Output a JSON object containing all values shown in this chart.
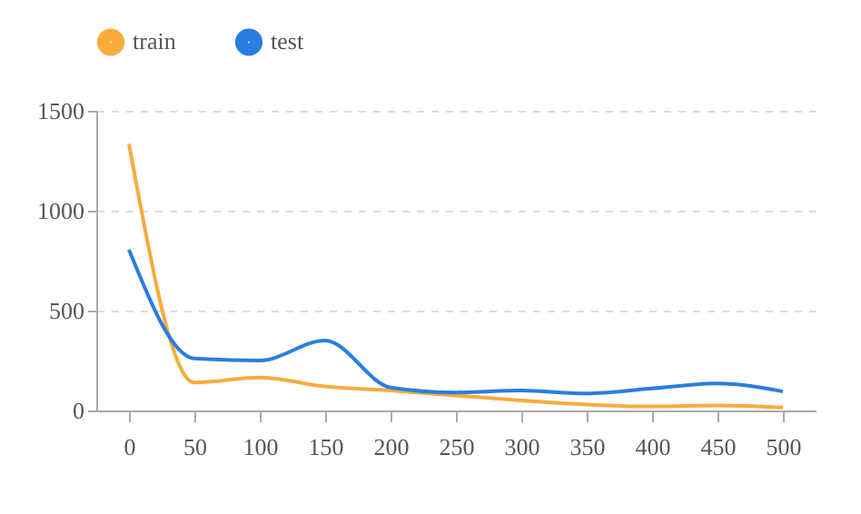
{
  "chart_data": {
    "type": "line",
    "x": [
      0,
      50,
      100,
      150,
      200,
      250,
      300,
      350,
      400,
      450,
      500
    ],
    "series": [
      {
        "name": "train",
        "color": "#f9ab3c",
        "values": [
          1335,
          140,
          165,
          120,
          100,
          75,
          50,
          30,
          20,
          25,
          15
        ]
      },
      {
        "name": "test",
        "color": "#2a7de1",
        "values": [
          805,
          260,
          250,
          350,
          115,
          90,
          100,
          85,
          110,
          135,
          95
        ]
      }
    ],
    "xlim": [
      -25,
      525
    ],
    "xticks": [
      0,
      50,
      100,
      150,
      200,
      250,
      300,
      350,
      400,
      450,
      500
    ],
    "ylim": [
      0,
      1500
    ],
    "yticks": [
      0,
      500,
      1000,
      1500
    ],
    "grid": "y",
    "legend": "top",
    "marker": "none",
    "line_style": "solid"
  }
}
